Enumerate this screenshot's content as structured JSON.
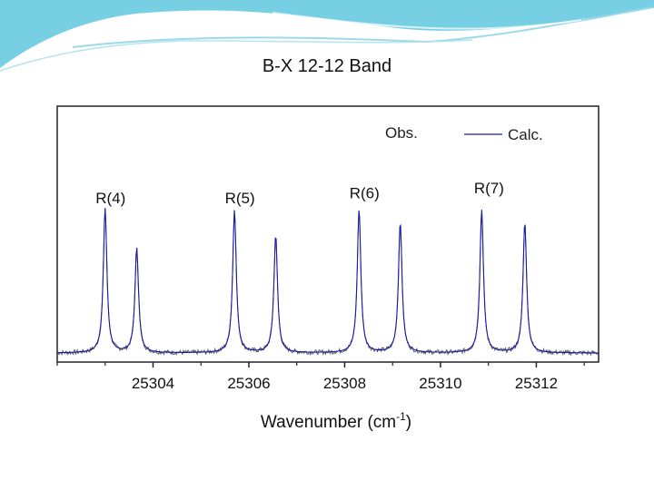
{
  "slide": {
    "title": "B-X 12-12 Band"
  },
  "colors": {
    "observed_trace": "#555555",
    "calculated_trace": "#1a1aa8",
    "decoration_blue": "#4fc3dd"
  },
  "chart_data": {
    "type": "line",
    "title": "B-X 12-12 Band",
    "xlabel_main": "Wavenumber (cm",
    "xlabel_sup": "-1",
    "xlabel_tail": ")",
    "ylabel": "",
    "xlim": [
      25302.0,
      25313.3
    ],
    "ylim": [
      0,
      1.0
    ],
    "x_ticks": [
      25304,
      25306,
      25308,
      25310,
      25312
    ],
    "x_tick_labels": [
      "25304",
      "25306",
      "25308",
      "25310",
      "25312"
    ],
    "y_ticks_shown": false,
    "legend": {
      "position": "top-right",
      "obs_label": "Obs.",
      "calc_label": "Calc."
    },
    "annotations": [
      {
        "text": "R(4)",
        "x": 25302.8,
        "y": 0.62
      },
      {
        "text": "R(5)",
        "x": 25305.5,
        "y": 0.62
      },
      {
        "text": "R(6)",
        "x": 25308.1,
        "y": 0.64
      },
      {
        "text": "R(7)",
        "x": 25310.7,
        "y": 0.66
      }
    ],
    "series": [
      {
        "name": "Obs.",
        "peaks": [
          {
            "x": 25303.0,
            "height": 0.565
          },
          {
            "x": 25303.66,
            "height": 0.41
          },
          {
            "x": 25305.7,
            "height": 0.555
          },
          {
            "x": 25306.56,
            "height": 0.46
          },
          {
            "x": 25308.3,
            "height": 0.56
          },
          {
            "x": 25309.16,
            "height": 0.51
          },
          {
            "x": 25310.86,
            "height": 0.55
          },
          {
            "x": 25311.76,
            "height": 0.51
          }
        ],
        "baseline": 0.035
      },
      {
        "name": "Calc.",
        "peaks": [
          {
            "x": 25303.0,
            "height": 0.565
          },
          {
            "x": 25303.66,
            "height": 0.41
          },
          {
            "x": 25305.7,
            "height": 0.56
          },
          {
            "x": 25306.56,
            "height": 0.46
          },
          {
            "x": 25308.3,
            "height": 0.56
          },
          {
            "x": 25309.16,
            "height": 0.51
          },
          {
            "x": 25310.86,
            "height": 0.56
          },
          {
            "x": 25311.76,
            "height": 0.51
          }
        ],
        "baseline": 0.035
      }
    ]
  }
}
